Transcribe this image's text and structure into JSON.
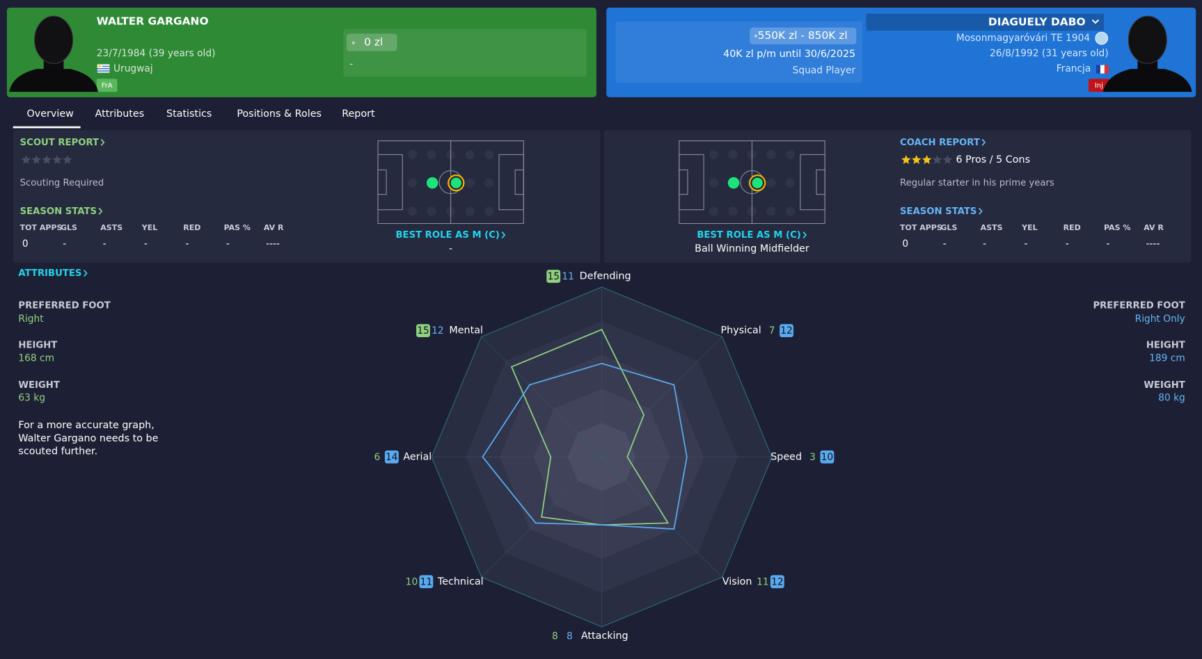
{
  "left_player": {
    "name": "WALTER GARGANO",
    "dob": "23/7/1984 (39 years old)",
    "nation": "Urugwaj",
    "badge": "FrA",
    "value": "0 zl",
    "contract": "-"
  },
  "right_player": {
    "name": "DIAGUELY DABO",
    "club": "Mosonmagyaróvári TE 1904",
    "dob": "26/8/1992 (31 years old)",
    "nation": "Francja",
    "badge": "Inj",
    "value": "550K zl - 850K zl",
    "contract": "40K zl p/m until 30/6/2025",
    "status": "Squad Player"
  },
  "tabs": [
    "Overview",
    "Attributes",
    "Statistics",
    "Positions & Roles",
    "Report"
  ],
  "left_panel": {
    "report_heading": "SCOUT REPORT",
    "stars": 0,
    "report_note": "Scouting Required",
    "stats_heading": "SEASON STATS",
    "stat_headers": [
      "TOT APPS",
      "GLS",
      "ASTS",
      "YEL",
      "RED",
      "PAS %",
      "AV R"
    ],
    "stat_values": [
      "0",
      "-",
      "-",
      "-",
      "-",
      "-",
      "----"
    ],
    "best_role": "BEST ROLE AS M (C)",
    "role": "-"
  },
  "right_panel": {
    "report_heading": "COACH REPORT",
    "stars": 3,
    "pros_cons": "6 Pros / 5 Cons",
    "report_note": "Regular starter in his prime years",
    "stats_heading": "SEASON STATS",
    "stat_headers": [
      "TOT APPS",
      "GLS",
      "ASTS",
      "YEL",
      "RED",
      "PAS %",
      "AV R"
    ],
    "stat_values": [
      "0",
      "-",
      "-",
      "-",
      "-",
      "-",
      "----"
    ],
    "best_role": "BEST ROLE AS M (C)",
    "role": "Ball Winning Midfielder"
  },
  "attributes_heading": "ATTRIBUTES",
  "left_physical": {
    "foot_label": "PREFERRED FOOT",
    "foot": "Right",
    "height_label": "HEIGHT",
    "height": "168 cm",
    "weight_label": "WEIGHT",
    "weight": "63 kg",
    "note": [
      "For a more accurate graph,",
      "Walter Gargano needs to be",
      "scouted further."
    ]
  },
  "right_physical": {
    "foot_label": "PREFERRED FOOT",
    "foot": "Right Only",
    "height_label": "HEIGHT",
    "height": "189 cm",
    "weight_label": "WEIGHT",
    "weight": "80 kg"
  },
  "radar": {
    "axes": [
      "Defending",
      "Physical",
      "Speed",
      "Vision",
      "Attacking",
      "Technical",
      "Aerial",
      "Mental"
    ],
    "rlim": [
      0,
      20
    ],
    "series": [
      {
        "color": "#8fd17f",
        "values": [
          15,
          7,
          3,
          11,
          8,
          10,
          6,
          15
        ]
      },
      {
        "color": "#5aaaf0",
        "values": [
          11,
          12,
          10,
          12,
          8,
          11,
          14,
          12
        ]
      }
    ]
  }
}
